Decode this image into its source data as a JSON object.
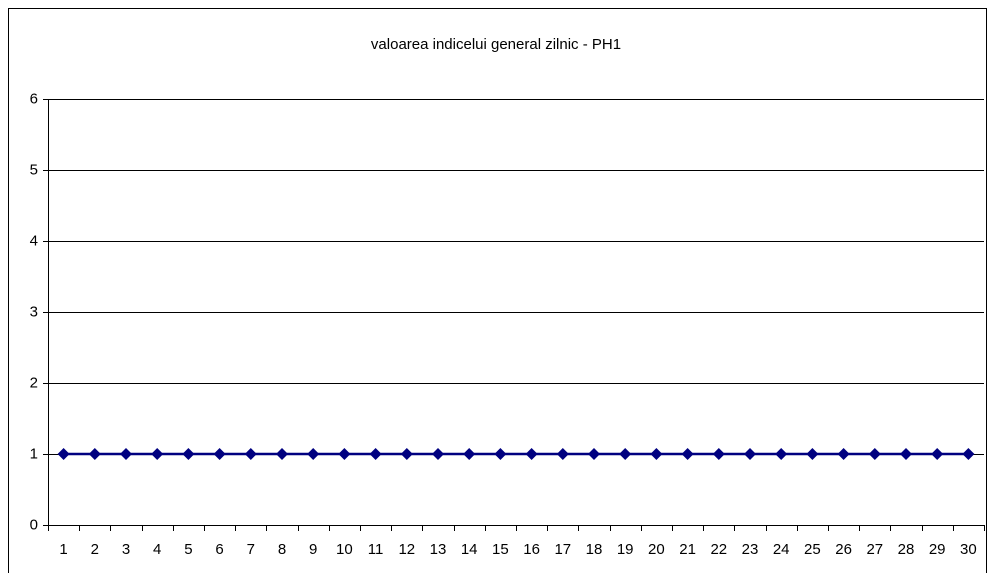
{
  "chart_data": {
    "type": "line",
    "title": "valoarea indicelui general zilnic - PH1",
    "categories": [
      1,
      2,
      3,
      4,
      5,
      6,
      7,
      8,
      9,
      10,
      11,
      12,
      13,
      14,
      15,
      16,
      17,
      18,
      19,
      20,
      21,
      22,
      23,
      24,
      25,
      26,
      27,
      28,
      29,
      30
    ],
    "series": [
      {
        "name": "PH1",
        "color": "#000080",
        "values": [
          1,
          1,
          1,
          1,
          1,
          1,
          1,
          1,
          1,
          1,
          1,
          1,
          1,
          1,
          1,
          1,
          1,
          1,
          1,
          1,
          1,
          1,
          1,
          1,
          1,
          1,
          1,
          1,
          1,
          1
        ]
      }
    ],
    "ylim": [
      0,
      6
    ],
    "yticks": [
      0,
      1,
      2,
      3,
      4,
      5,
      6
    ],
    "grid": true
  }
}
